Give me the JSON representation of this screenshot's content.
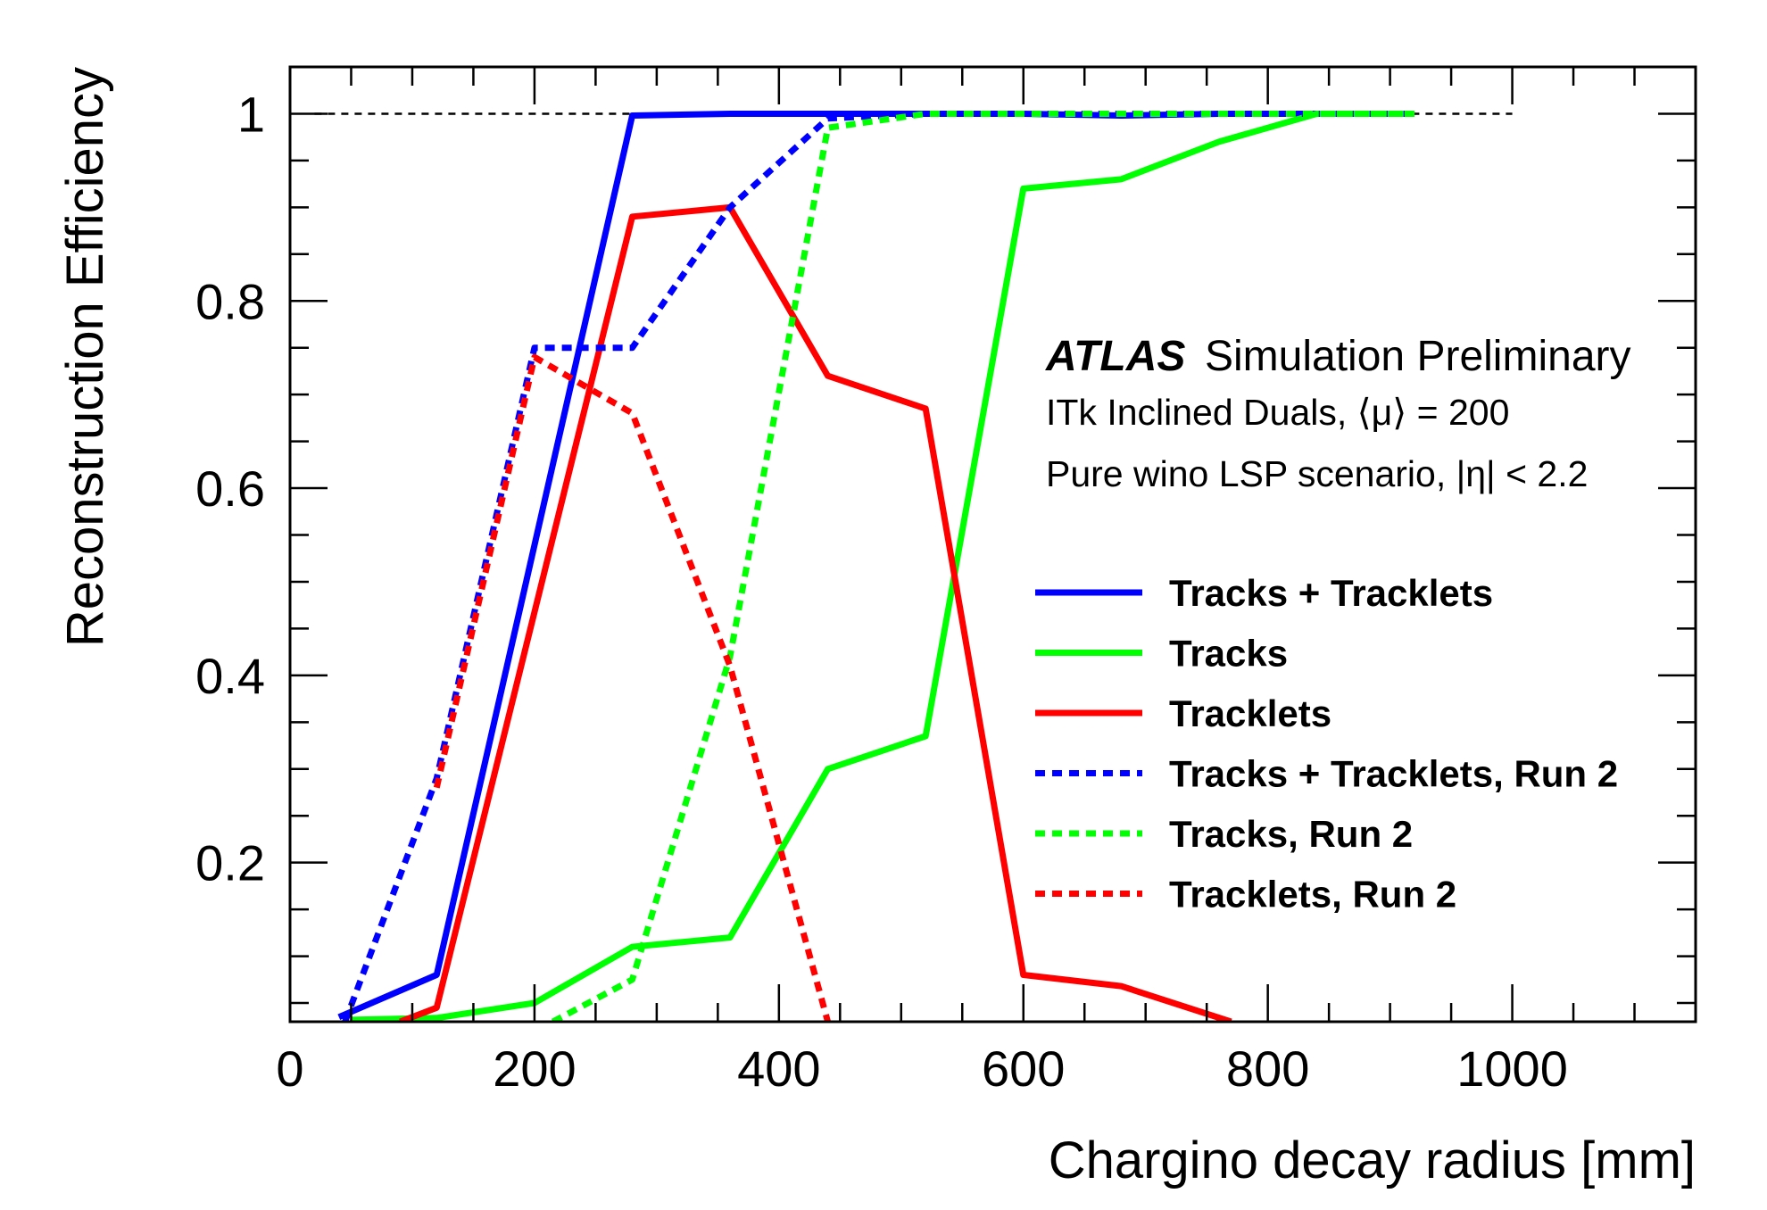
{
  "chart_data": {
    "type": "line",
    "xlabel": "Chargino decay radius [mm]",
    "ylabel": "Reconstruction Efficiency",
    "xlim": [
      0,
      1150
    ],
    "ylim": [
      0.03,
      1.05
    ],
    "x_ticks": [
      "0",
      "200",
      "400",
      "600",
      "800",
      "1000"
    ],
    "y_ticks": [
      "0.2",
      "0.4",
      "0.6",
      "0.8",
      "1"
    ],
    "reference_line": {
      "y": 1.0,
      "x_range": [
        20,
        1000
      ]
    },
    "atlas_label": "ATLAS",
    "atlas_sublabel": "Simulation Preliminary",
    "info_lines": [
      "ITk Inclined Duals, ⟨μ⟩ = 200",
      "Pure wino LSP scenario, |η| < 2.2"
    ],
    "legend_position": "right",
    "series": [
      {
        "name": "Tracks + Tracklets",
        "color": "#0000ff",
        "style": "solid",
        "x": [
          40,
          120,
          280,
          360,
          440,
          520,
          600,
          680,
          760,
          840,
          920
        ],
        "y": [
          0.035,
          0.08,
          0.998,
          1.0,
          1.0,
          1.0,
          1.0,
          0.998,
          1.0,
          1.0,
          1.0
        ]
      },
      {
        "name": "Tracks",
        "color": "#00ff00",
        "style": "solid",
        "x": [
          50,
          120,
          200,
          280,
          360,
          440,
          520,
          600,
          680,
          760,
          840,
          920
        ],
        "y": [
          0.032,
          0.034,
          0.05,
          0.11,
          0.12,
          0.3,
          0.335,
          0.92,
          0.93,
          0.97,
          1.0,
          1.0
        ]
      },
      {
        "name": "Tracklets",
        "color": "#ff0000",
        "style": "solid",
        "x": [
          90,
          120,
          280,
          360,
          440,
          520,
          600,
          680,
          770
        ],
        "y": [
          0.03,
          0.045,
          0.89,
          0.9,
          0.72,
          0.685,
          0.08,
          0.068,
          0.03
        ]
      },
      {
        "name": "Tracks + Tracklets, Run 2",
        "color": "#0000ff",
        "style": "dashed",
        "x": [
          45,
          120,
          200,
          280,
          360,
          440,
          520,
          600,
          680,
          760,
          840,
          920
        ],
        "y": [
          0.03,
          0.29,
          0.75,
          0.75,
          0.9,
          0.995,
          1.0,
          1.0,
          1.0,
          1.0,
          1.0,
          1.0
        ]
      },
      {
        "name": "Tracks, Run 2",
        "color": "#00ff00",
        "style": "dashed",
        "x": [
          215,
          280,
          360,
          440,
          520,
          600,
          680,
          760,
          840,
          920
        ],
        "y": [
          0.03,
          0.075,
          0.42,
          0.985,
          1.0,
          1.0,
          1.0,
          1.0,
          1.0,
          1.0
        ]
      },
      {
        "name": "Tracklets, Run 2",
        "color": "#ff0000",
        "style": "dashed",
        "x": [
          120,
          200,
          280,
          360,
          440
        ],
        "y": [
          0.28,
          0.74,
          0.68,
          0.41,
          0.03
        ]
      }
    ]
  }
}
